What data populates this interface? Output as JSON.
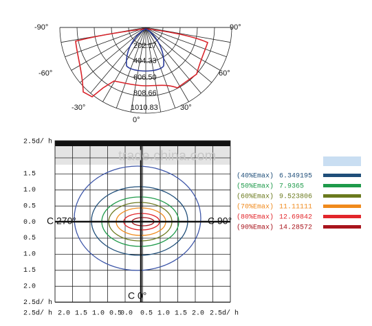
{
  "polar": {
    "angle_labels": [
      "-90°",
      "90°",
      "-60°",
      "60°",
      "-30°",
      "30°",
      "0°"
    ],
    "radial_labels": [
      "202.17",
      "404.33",
      "606.50",
      "808.66",
      "1010.83"
    ]
  },
  "isolux": {
    "corner_label": "2.5d/ h",
    "y_labels": [
      "1.5",
      "1.0",
      "0.5",
      "0.0",
      "0.5",
      "1.0",
      "1.5",
      "2.0",
      "2.5d/ h"
    ],
    "x_labels": [
      "2.5d/ h",
      "2.0",
      "1.5",
      "1.0",
      "0.5",
      "0.0",
      "0.5",
      "1.0",
      "1.5",
      "2.0",
      "2.5d/ h"
    ],
    "axis_labels": [
      "C 270°",
      "C 90°",
      "C 0°"
    ],
    "legend": [
      {
        "level": "(40%Emax)",
        "value": "6.349195"
      },
      {
        "level": "(50%Emax)",
        "value": "7.9365"
      },
      {
        "level": "(60%Emax)",
        "value": "9.523806"
      },
      {
        "level": "(70%Emax)",
        "value": "11.11111"
      },
      {
        "level": "(80%Emax)",
        "value": "12.69842"
      },
      {
        "level": "(90%Emax)",
        "value": "14.28572"
      }
    ]
  },
  "watermark": "trade.china.com"
}
